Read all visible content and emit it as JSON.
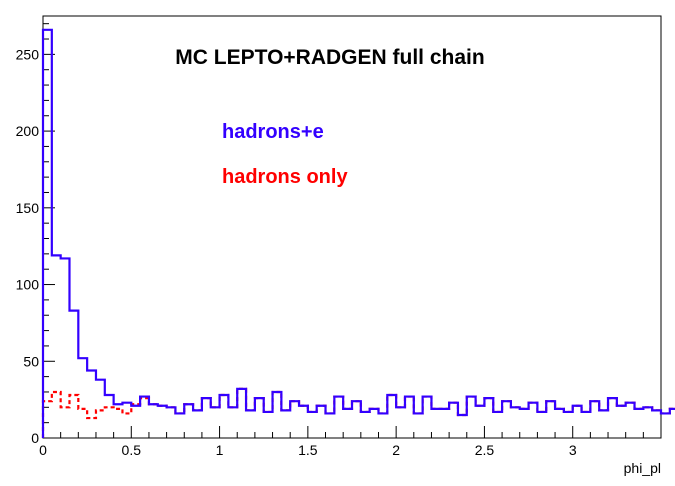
{
  "chart_data": {
    "type": "line",
    "title": "MC LEPTO+RADGEN full chain",
    "xlabel": "phi_pl",
    "ylabel": "",
    "xlim": [
      0,
      3.5
    ],
    "ylim": [
      0,
      275
    ],
    "bin_width": 0.05,
    "x_ticks": [
      0,
      0.5,
      1,
      1.5,
      2,
      2.5,
      3
    ],
    "x_tick_labels": [
      "0",
      "0.5",
      "1",
      "1.5",
      "2",
      "2.5",
      "3"
    ],
    "y_ticks": [
      0,
      50,
      100,
      150,
      200,
      250
    ],
    "y_tick_labels": [
      "0",
      "50",
      "100",
      "150",
      "200",
      "250"
    ],
    "series": [
      {
        "name": "hadrons+e",
        "color": "#3300ff",
        "style": "solid",
        "values": [
          266,
          119,
          117,
          83,
          52,
          44,
          38,
          28,
          22,
          23,
          21,
          27,
          22,
          21,
          20,
          16,
          22,
          18,
          26,
          20,
          28,
          20,
          32,
          18,
          26,
          17,
          30,
          18,
          24,
          21,
          17,
          21,
          16,
          27,
          19,
          24,
          17,
          19,
          16,
          28,
          20,
          27,
          16,
          27,
          19,
          19,
          23,
          15,
          27,
          21,
          26,
          17,
          24,
          20,
          19,
          23,
          17,
          24,
          19,
          17,
          21,
          17,
          24,
          18,
          26,
          21,
          23,
          19,
          20,
          18,
          16,
          19,
          22,
          20,
          26,
          23,
          29,
          21,
          24,
          20,
          31,
          22,
          19,
          22,
          21,
          25,
          22,
          27,
          26,
          21,
          20,
          18,
          22,
          25,
          27,
          23,
          20,
          24,
          20,
          18,
          21,
          17,
          23,
          19,
          24,
          20,
          20,
          18,
          19,
          25,
          29,
          22,
          30,
          21,
          26,
          29,
          33,
          38,
          40,
          34,
          32,
          28,
          36,
          31,
          32,
          1,
          0,
          0,
          0,
          0,
          0,
          0,
          0,
          0,
          0,
          0,
          0,
          0,
          0,
          0
        ]
      },
      {
        "name": "hadrons only",
        "color": "#ff0000",
        "style": "dashed",
        "values": [
          24,
          30,
          20,
          28,
          19,
          13,
          18,
          20,
          19,
          16,
          22,
          26,
          22,
          21,
          20,
          16,
          22,
          18,
          26,
          20,
          28,
          20,
          32,
          18,
          26,
          17,
          30,
          18,
          24,
          21,
          17,
          21,
          16,
          27,
          19,
          24,
          17,
          19,
          16,
          28,
          20,
          27,
          16,
          27,
          19,
          19,
          23,
          15,
          27,
          21,
          26,
          17,
          24,
          20,
          19,
          23,
          17,
          24,
          19,
          17,
          21,
          17,
          24,
          18,
          26,
          21,
          23,
          19,
          20,
          18,
          16,
          19,
          22,
          20,
          26,
          23,
          29,
          21,
          24,
          20,
          31,
          22,
          19,
          22,
          21,
          25,
          22,
          27,
          26,
          21,
          20,
          18,
          22,
          25,
          27,
          23,
          20,
          24,
          20,
          18,
          21,
          17,
          23,
          19,
          24,
          20,
          20,
          18,
          19,
          25,
          29,
          22,
          30,
          21,
          26,
          29,
          33,
          38,
          40,
          34,
          32,
          28,
          36,
          30,
          28,
          1,
          0,
          0,
          0,
          0,
          0,
          0,
          0,
          0,
          0,
          0,
          0,
          0,
          0,
          0
        ]
      }
    ]
  }
}
